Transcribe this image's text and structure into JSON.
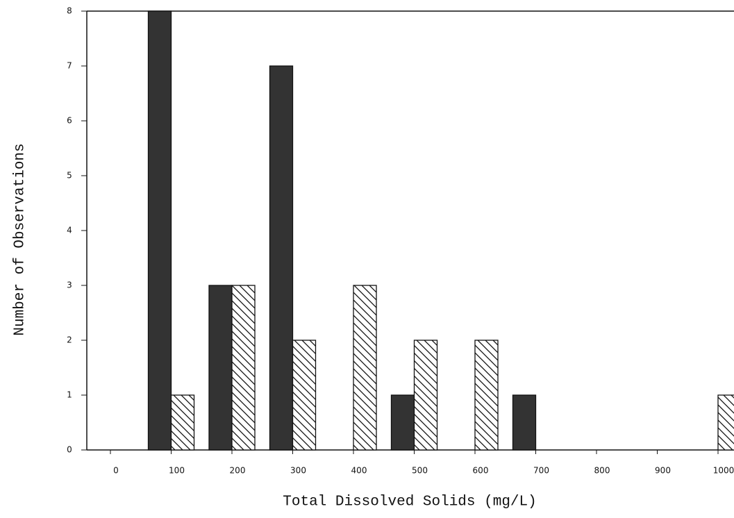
{
  "chart_data": {
    "type": "bar",
    "xlabel": "Total Dissolved Solids (mg/L)",
    "ylabel": "Number of Observations",
    "categories": [
      "0",
      "100",
      "200",
      "300",
      "400",
      "500",
      "600",
      "700",
      "800",
      "900",
      "1000"
    ],
    "series": [
      {
        "color": "#333333",
        "pattern": "solid",
        "values": [
          0,
          8,
          3,
          7,
          0,
          1,
          0,
          1,
          0,
          0,
          0
        ]
      },
      {
        "color": "#ffffff",
        "pattern": "hatch",
        "values": [
          0,
          1,
          3,
          2,
          3,
          2,
          2,
          0,
          0,
          0,
          1
        ]
      }
    ],
    "ylim": [
      0,
      8
    ],
    "yticks": [
      0,
      1,
      2,
      3,
      4,
      5,
      6,
      7,
      8
    ],
    "grid": false
  }
}
